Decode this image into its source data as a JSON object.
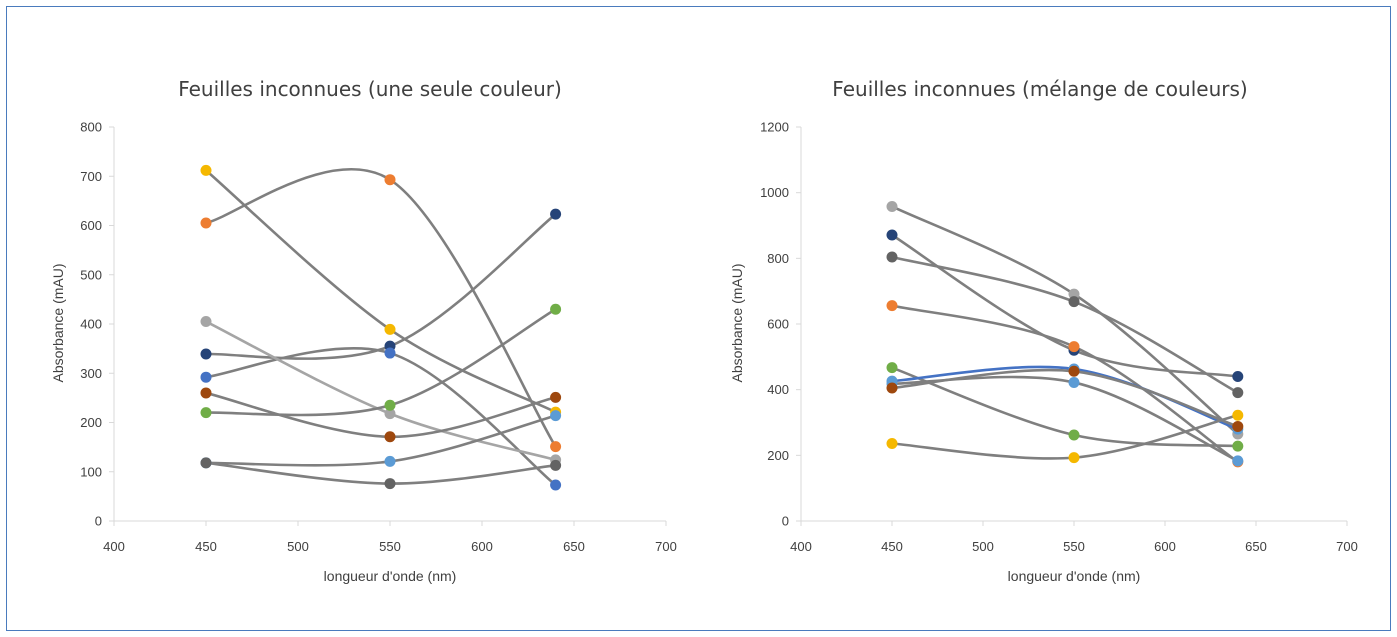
{
  "chart_data": [
    {
      "type": "scatter",
      "title": "Feuilles inconnues (une seule couleur)",
      "xlabel": "longueur d'onde (nm)",
      "ylabel": "Absorbance (mAU)",
      "xlim": [
        400,
        700
      ],
      "ylim": [
        0,
        800
      ],
      "xticks": [
        400,
        450,
        500,
        550,
        600,
        650,
        700
      ],
      "yticks": [
        0,
        100,
        200,
        300,
        400,
        500,
        600,
        700,
        800
      ],
      "x": [
        450,
        550,
        640
      ],
      "line_style": "smooth",
      "series": [
        {
          "color": "#f5b800",
          "line_color": "#7f7f7f",
          "values": [
            712,
            389,
            221
          ]
        },
        {
          "color": "#ed7d31",
          "line_color": "#7f7f7f",
          "values": [
            605,
            693,
            151
          ]
        },
        {
          "color": "#264478",
          "line_color": "#7f7f7f",
          "values": [
            339,
            355,
            623
          ]
        },
        {
          "color": "#4472c4",
          "line_color": "#7f7f7f",
          "values": [
            292,
            341,
            73
          ]
        },
        {
          "color": "#a5a5a5",
          "line_color": "#a5a5a5",
          "values": [
            405,
            218,
            124
          ]
        },
        {
          "color": "#70ad47",
          "line_color": "#7f7f7f",
          "values": [
            220,
            235,
            430
          ]
        },
        {
          "color": "#9e480e",
          "line_color": "#7f7f7f",
          "values": [
            260,
            171,
            251
          ]
        },
        {
          "color": "#5b9bd5",
          "line_color": "#7f7f7f",
          "values": [
            118,
            121,
            214
          ]
        },
        {
          "color": "#636363",
          "line_color": "#7f7f7f",
          "values": [
            118,
            76,
            113
          ]
        }
      ]
    },
    {
      "type": "scatter",
      "title": "Feuilles inconnues (mélange de couleurs)",
      "xlabel": "longueur d'onde (nm)",
      "ylabel": "Absorbance (mAU)",
      "xlim": [
        400,
        700
      ],
      "ylim": [
        0,
        1200
      ],
      "xticks": [
        400,
        450,
        500,
        550,
        600,
        650,
        700
      ],
      "yticks": [
        0,
        200,
        400,
        600,
        800,
        1000,
        1200
      ],
      "x": [
        450,
        550,
        640
      ],
      "line_style": "smooth",
      "series": [
        {
          "color": "#a5a5a5",
          "line_color": "#7f7f7f",
          "values": [
            958,
            691,
            265
          ]
        },
        {
          "color": "#264478",
          "line_color": "#7f7f7f",
          "values": [
            871,
            520,
            440
          ]
        },
        {
          "color": "#636363",
          "line_color": "#7f7f7f",
          "values": [
            804,
            668,
            391
          ]
        },
        {
          "color": "#ed7d31",
          "line_color": "#7f7f7f",
          "values": [
            656,
            531,
            180
          ]
        },
        {
          "color": "#70ad47",
          "line_color": "#7f7f7f",
          "values": [
            467,
            262,
            228
          ]
        },
        {
          "color": "#5b9bd5",
          "line_color": "#4472c4",
          "values": [
            426,
            463,
            280
          ]
        },
        {
          "color": "#5b9bd5",
          "line_color": "#7f7f7f",
          "values": [
            418,
            422,
            183
          ]
        },
        {
          "color": "#9e480e",
          "line_color": "#7f7f7f",
          "values": [
            405,
            456,
            288
          ]
        },
        {
          "color": "#f5b800",
          "line_color": "#7f7f7f",
          "values": [
            236,
            193,
            322
          ]
        }
      ]
    }
  ]
}
